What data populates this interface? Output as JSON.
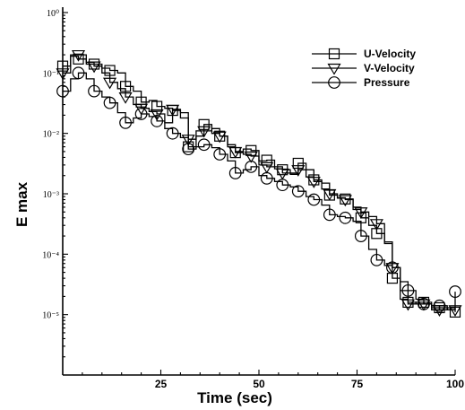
{
  "chart_data": {
    "type": "line",
    "title": "",
    "xlabel": "Time (sec)",
    "ylabel": "E max",
    "xlim": [
      0,
      100
    ],
    "ylim_log10": [
      -6,
      0
    ],
    "y_scale": "log",
    "x_ticks": [
      25,
      50,
      75,
      100
    ],
    "x_tick_labels": [
      "25",
      "50",
      "75",
      "100"
    ],
    "y_ticks_exp": [
      0,
      -1,
      -2,
      -3,
      -4,
      -5
    ],
    "y_tick_labels": [
      "10⁰",
      "10⁻¹",
      "10⁻²",
      "10⁻³",
      "10⁻⁴",
      "10⁻⁵"
    ],
    "legend_placement": "top-right",
    "series": [
      {
        "name": "U-Velocity",
        "marker": "square",
        "x": [
          0,
          2,
          4,
          6,
          8,
          10,
          12,
          14,
          16,
          18,
          20,
          22,
          24,
          26,
          28,
          30,
          32,
          34,
          36,
          38,
          40,
          42,
          44,
          46,
          48,
          50,
          52,
          54,
          56,
          58,
          60,
          62,
          64,
          66,
          68,
          70,
          72,
          74,
          76,
          78,
          80,
          82,
          84,
          86,
          88,
          90,
          92,
          94,
          96,
          98,
          100
        ],
        "y": [
          0.13,
          0.19,
          0.17,
          0.14,
          0.14,
          0.12,
          0.11,
          0.1,
          0.06,
          0.05,
          0.033,
          0.035,
          0.028,
          0.026,
          0.024,
          0.022,
          0.006,
          0.011,
          0.014,
          0.01,
          0.009,
          0.0065,
          0.0048,
          0.0055,
          0.0052,
          0.0035,
          0.0036,
          0.0028,
          0.0025,
          0.0022,
          0.0032,
          0.0025,
          0.0017,
          0.0015,
          0.00095,
          0.00085,
          0.00082,
          0.00055,
          0.0004,
          0.0003,
          0.00022,
          0.00016,
          4e-05,
          1.8e-05,
          1.6e-05,
          1.5e-05,
          1.6e-05,
          1.4e-05,
          1.3e-05,
          1.2e-05,
          1.1e-05
        ]
      },
      {
        "name": "V-Velocity",
        "marker": "triangle-down",
        "x": [
          0,
          2,
          4,
          6,
          8,
          10,
          12,
          14,
          16,
          18,
          20,
          22,
          24,
          26,
          28,
          30,
          32,
          34,
          36,
          38,
          40,
          42,
          44,
          46,
          48,
          50,
          52,
          54,
          56,
          58,
          60,
          62,
          64,
          66,
          68,
          70,
          72,
          74,
          76,
          78,
          80,
          82,
          84,
          86,
          88,
          90,
          92,
          94,
          96,
          98,
          100
        ],
        "y": [
          0.1,
          0.2,
          0.2,
          0.15,
          0.13,
          0.1,
          0.07,
          0.055,
          0.04,
          0.03,
          0.026,
          0.023,
          0.021,
          0.015,
          0.025,
          0.018,
          0.008,
          0.009,
          0.011,
          0.012,
          0.009,
          0.006,
          0.005,
          0.0045,
          0.0042,
          0.003,
          0.0028,
          0.0026,
          0.0022,
          0.0021,
          0.0025,
          0.0019,
          0.0016,
          0.0012,
          0.001,
          0.00086,
          0.0008,
          0.0006,
          0.0005,
          0.00042,
          0.00032,
          0.00015,
          6e-05,
          2.5e-05,
          1.5e-05,
          1.6e-05,
          1.5e-05,
          1.3e-05,
          1.2e-05,
          1.3e-05,
          1.2e-05
        ]
      },
      {
        "name": "Pressure",
        "marker": "circle",
        "x": [
          0,
          2,
          4,
          6,
          8,
          10,
          12,
          14,
          16,
          18,
          20,
          22,
          24,
          26,
          28,
          30,
          32,
          34,
          36,
          38,
          40,
          42,
          44,
          46,
          48,
          50,
          52,
          54,
          56,
          58,
          60,
          62,
          64,
          66,
          68,
          70,
          72,
          74,
          76,
          78,
          80,
          82,
          84,
          86,
          88,
          90,
          92,
          94,
          96,
          98,
          100
        ],
        "y": [
          0.05,
          0.08,
          0.1,
          0.08,
          0.05,
          0.04,
          0.032,
          0.022,
          0.015,
          0.018,
          0.021,
          0.019,
          0.016,
          0.012,
          0.01,
          0.0085,
          0.0055,
          0.006,
          0.0065,
          0.0058,
          0.0045,
          0.0035,
          0.0022,
          0.0025,
          0.0028,
          0.002,
          0.0018,
          0.0016,
          0.0014,
          0.0013,
          0.0011,
          0.0009,
          0.0008,
          0.00065,
          0.00045,
          0.00042,
          0.0004,
          0.00035,
          0.0002,
          0.00012,
          8e-05,
          6.5e-05,
          6e-05,
          3.5e-05,
          2.5e-05,
          1.8e-05,
          1.5e-05,
          1.2e-05,
          1.4e-05,
          1.2e-05,
          2.4e-05
        ]
      }
    ]
  }
}
